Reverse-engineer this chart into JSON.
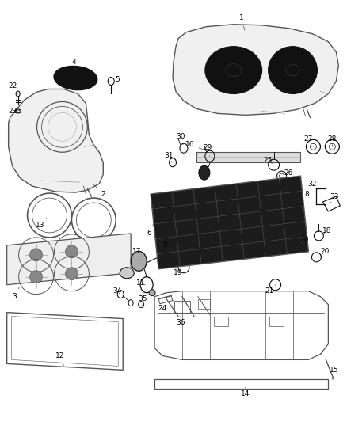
{
  "bg_color": "#ffffff",
  "line_color": "#555555",
  "dark_color": "#111111",
  "label_color": "#000000",
  "label_fontsize": 6.5,
  "fig_width": 4.38,
  "fig_height": 5.33,
  "dpi": 100
}
